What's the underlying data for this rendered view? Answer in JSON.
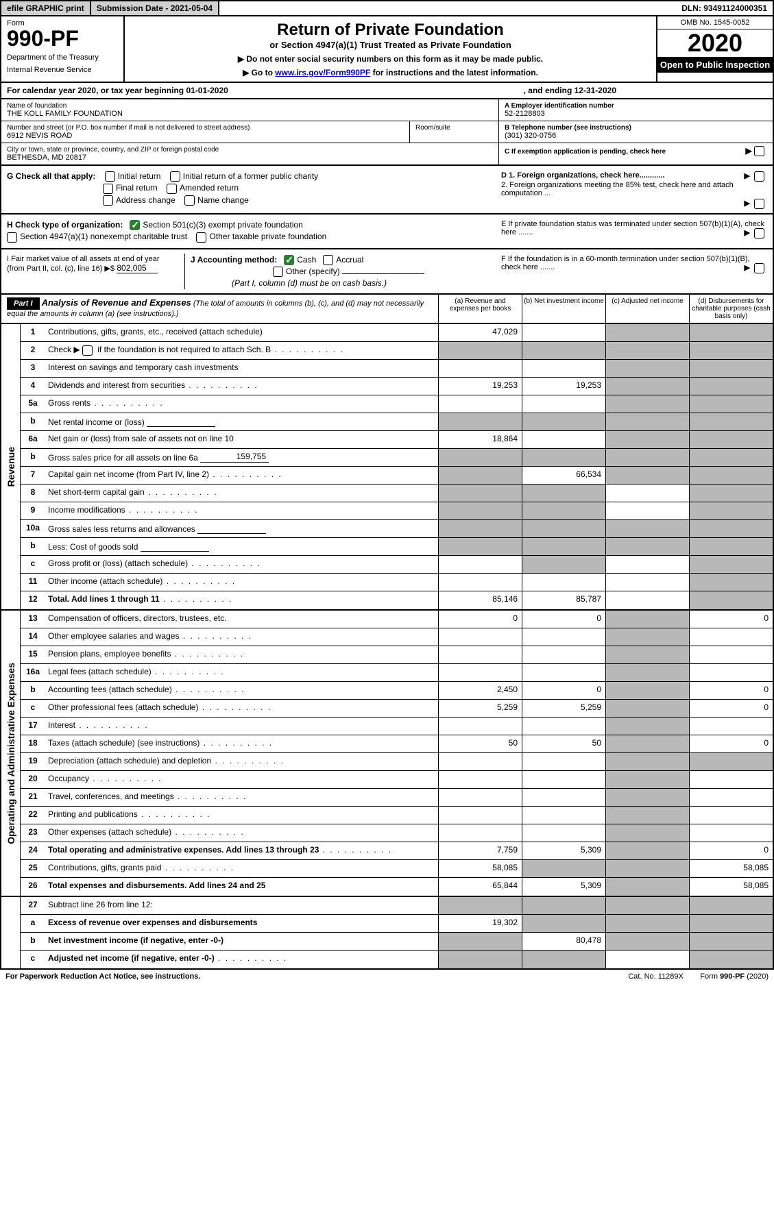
{
  "topbar": {
    "efile": "efile GRAPHIC print",
    "submission": "Submission Date - 2021-05-04",
    "dln": "DLN: 93491124000351"
  },
  "header": {
    "form_label": "Form",
    "form_number": "990-PF",
    "dept1": "Department of the Treasury",
    "dept2": "Internal Revenue Service",
    "title": "Return of Private Foundation",
    "subtitle": "or Section 4947(a)(1) Trust Treated as Private Foundation",
    "note1": "▶ Do not enter social security numbers on this form as it may be made public.",
    "note2_pre": "▶ Go to ",
    "note2_link": "www.irs.gov/Form990PF",
    "note2_post": " for instructions and the latest information.",
    "omb": "OMB No. 1545-0052",
    "year": "2020",
    "inspect": "Open to Public Inspection"
  },
  "calyear": {
    "pre": "For calendar year 2020, or tax year beginning 01-01-2020",
    "end": ", and ending 12-31-2020"
  },
  "entity": {
    "name_lbl": "Name of foundation",
    "name": "THE KOLL FAMILY FOUNDATION",
    "street_lbl": "Number and street (or P.O. box number if mail is not delivered to street address)",
    "street": "6912 NEVIS ROAD",
    "room_lbl": "Room/suite",
    "city_lbl": "City or town, state or province, country, and ZIP or foreign postal code",
    "city": "BETHESDA, MD  20817",
    "ein_lbl": "A Employer identification number",
    "ein": "52-2128803",
    "phone_lbl": "B Telephone number (see instructions)",
    "phone": "(301) 320-0756",
    "c_lbl": "C If exemption application is pending, check here"
  },
  "g": {
    "label": "G Check all that apply:",
    "opts": [
      "Initial return",
      "Initial return of a former public charity",
      "Final return",
      "Amended return",
      "Address change",
      "Name change"
    ]
  },
  "h": {
    "label": "H Check type of organization:",
    "o1": "Section 501(c)(3) exempt private foundation",
    "o2": "Section 4947(a)(1) nonexempt charitable trust",
    "o3": "Other taxable private foundation"
  },
  "i": {
    "label": "I Fair market value of all assets at end of year (from Part II, col. (c), line 16) ▶$",
    "val": "802,005"
  },
  "j": {
    "label": "J Accounting method:",
    "o1": "Cash",
    "o2": "Accrual",
    "o3": "Other (specify)",
    "note": "(Part I, column (d) must be on cash basis.)"
  },
  "d": {
    "d1": "D 1. Foreign organizations, check here............",
    "d2": "2. Foreign organizations meeting the 85% test, check here and attach computation ...",
    "e": "E  If private foundation status was terminated under section 507(b)(1)(A), check here .......",
    "f": "F  If the foundation is in a 60-month termination under section 507(b)(1)(B), check here ......."
  },
  "part1": {
    "label": "Part I",
    "title": "Analysis of Revenue and Expenses",
    "note": "(The total of amounts in columns (b), (c), and (d) may not necessarily equal the amounts in column (a) (see instructions).)",
    "cols": {
      "a": "(a)   Revenue and expenses per books",
      "b": "(b)  Net investment income",
      "c": "(c)  Adjusted net income",
      "d": "(d)  Disbursements for charitable purposes (cash basis only)"
    }
  },
  "rev_label": "Revenue",
  "exp_label": "Operating and Administrative Expenses",
  "rows": {
    "r1": {
      "n": "1",
      "t": "Contributions, gifts, grants, etc., received (attach schedule)",
      "a": "47,029"
    },
    "r2": {
      "n": "2",
      "t": "Check ▶",
      "t2": " if the foundation is not required to attach Sch. B"
    },
    "r3": {
      "n": "3",
      "t": "Interest on savings and temporary cash investments"
    },
    "r4": {
      "n": "4",
      "t": "Dividends and interest from securities",
      "a": "19,253",
      "b": "19,253"
    },
    "r5a": {
      "n": "5a",
      "t": "Gross rents"
    },
    "r5b": {
      "n": "b",
      "t": "Net rental income or (loss)"
    },
    "r6a": {
      "n": "6a",
      "t": "Net gain or (loss) from sale of assets not on line 10",
      "a": "18,864"
    },
    "r6b": {
      "n": "b",
      "t": "Gross sales price for all assets on line 6a",
      "v": "159,755"
    },
    "r7": {
      "n": "7",
      "t": "Capital gain net income (from Part IV, line 2)",
      "b": "66,534"
    },
    "r8": {
      "n": "8",
      "t": "Net short-term capital gain"
    },
    "r9": {
      "n": "9",
      "t": "Income modifications"
    },
    "r10a": {
      "n": "10a",
      "t": "Gross sales less returns and allowances"
    },
    "r10b": {
      "n": "b",
      "t": "Less: Cost of goods sold"
    },
    "r10c": {
      "n": "c",
      "t": "Gross profit or (loss) (attach schedule)"
    },
    "r11": {
      "n": "11",
      "t": "Other income (attach schedule)"
    },
    "r12": {
      "n": "12",
      "t": "Total. Add lines 1 through 11",
      "a": "85,146",
      "b": "85,787"
    },
    "r13": {
      "n": "13",
      "t": "Compensation of officers, directors, trustees, etc.",
      "a": "0",
      "b": "0",
      "d": "0"
    },
    "r14": {
      "n": "14",
      "t": "Other employee salaries and wages"
    },
    "r15": {
      "n": "15",
      "t": "Pension plans, employee benefits"
    },
    "r16a": {
      "n": "16a",
      "t": "Legal fees (attach schedule)"
    },
    "r16b": {
      "n": "b",
      "t": "Accounting fees (attach schedule)",
      "a": "2,450",
      "b": "0",
      "d": "0"
    },
    "r16c": {
      "n": "c",
      "t": "Other professional fees (attach schedule)",
      "a": "5,259",
      "b": "5,259",
      "d": "0"
    },
    "r17": {
      "n": "17",
      "t": "Interest"
    },
    "r18": {
      "n": "18",
      "t": "Taxes (attach schedule) (see instructions)",
      "a": "50",
      "b": "50",
      "d": "0"
    },
    "r19": {
      "n": "19",
      "t": "Depreciation (attach schedule) and depletion"
    },
    "r20": {
      "n": "20",
      "t": "Occupancy"
    },
    "r21": {
      "n": "21",
      "t": "Travel, conferences, and meetings"
    },
    "r22": {
      "n": "22",
      "t": "Printing and publications"
    },
    "r23": {
      "n": "23",
      "t": "Other expenses (attach schedule)"
    },
    "r24": {
      "n": "24",
      "t": "Total operating and administrative expenses. Add lines 13 through 23",
      "a": "7,759",
      "b": "5,309",
      "d": "0"
    },
    "r25": {
      "n": "25",
      "t": "Contributions, gifts, grants paid",
      "a": "58,085",
      "d": "58,085"
    },
    "r26": {
      "n": "26",
      "t": "Total expenses and disbursements. Add lines 24 and 25",
      "a": "65,844",
      "b": "5,309",
      "d": "58,085"
    },
    "r27": {
      "n": "27",
      "t": "Subtract line 26 from line 12:"
    },
    "r27a": {
      "n": "a",
      "t": "Excess of revenue over expenses and disbursements",
      "a": "19,302"
    },
    "r27b": {
      "n": "b",
      "t": "Net investment income (if negative, enter -0-)",
      "b": "80,478"
    },
    "r27c": {
      "n": "c",
      "t": "Adjusted net income (if negative, enter -0-)"
    }
  },
  "footer": {
    "left": "For Paperwork Reduction Act Notice, see instructions.",
    "mid": "Cat. No. 11289X",
    "right": "Form 990-PF (2020)"
  }
}
